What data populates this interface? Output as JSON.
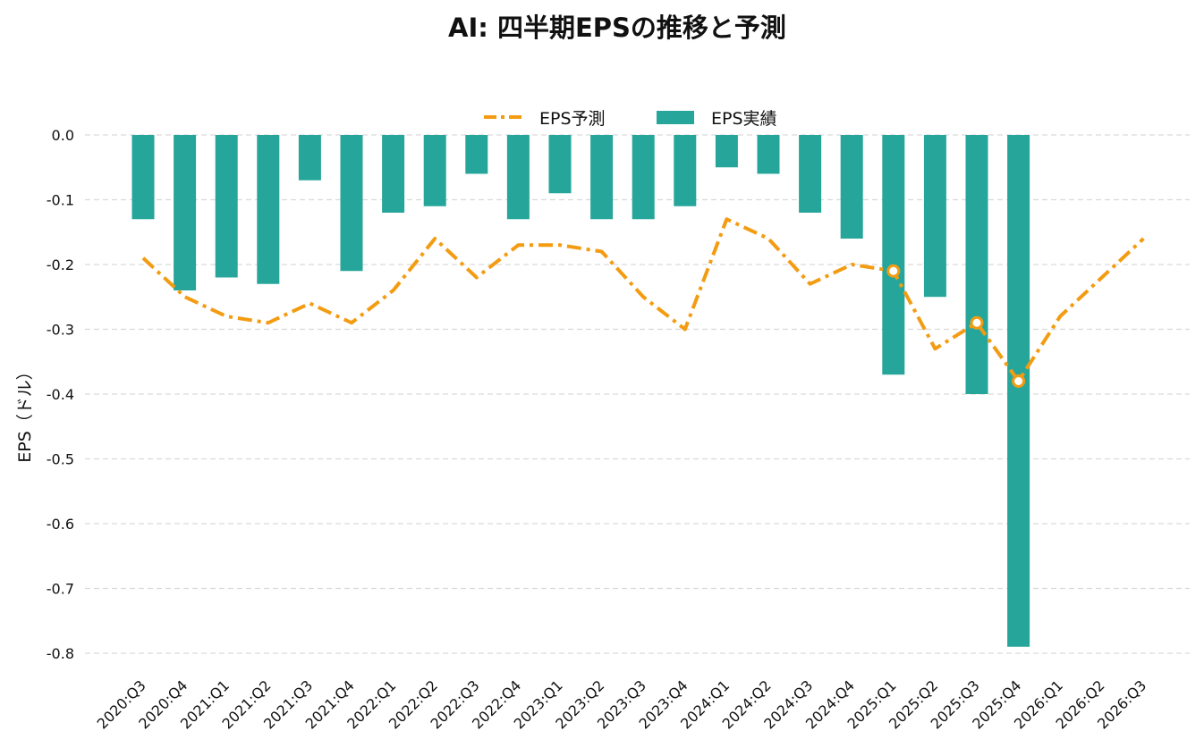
{
  "chart_data": {
    "type": "bar",
    "title": "AI: 四半期EPSの推移と予測",
    "xlabel": "",
    "ylabel": "EPS（ドル）",
    "ylim": [
      -0.82,
      0.0
    ],
    "yticks": [
      0.0,
      -0.1,
      -0.2,
      -0.3,
      -0.4,
      -0.5,
      -0.6,
      -0.7,
      -0.8
    ],
    "ytick_labels": [
      "0.0",
      "-0.1",
      "-0.2",
      "-0.3",
      "-0.4",
      "-0.5",
      "-0.6",
      "-0.7",
      "-0.8"
    ],
    "grid": "horizontal dashed",
    "legend_position": "top-center",
    "categories": [
      "2020:Q3",
      "2020:Q4",
      "2021:Q1",
      "2021:Q2",
      "2021:Q3",
      "2021:Q4",
      "2022:Q1",
      "2022:Q2",
      "2022:Q3",
      "2022:Q4",
      "2023:Q1",
      "2023:Q2",
      "2023:Q3",
      "2023:Q4",
      "2024:Q1",
      "2024:Q2",
      "2024:Q3",
      "2024:Q4",
      "2025:Q1",
      "2025:Q2",
      "2025:Q3",
      "2025:Q4",
      "2026:Q1",
      "2026:Q2",
      "2026:Q3"
    ],
    "series": [
      {
        "name": "EPS予測",
        "kind": "line",
        "style": "dash-dot",
        "color": "#F39C12",
        "values": [
          -0.19,
          -0.25,
          -0.28,
          -0.29,
          -0.26,
          -0.29,
          -0.24,
          -0.16,
          -0.22,
          -0.17,
          -0.17,
          -0.18,
          -0.25,
          -0.3,
          -0.13,
          -0.16,
          -0.23,
          -0.2,
          -0.21,
          -0.33,
          -0.29,
          -0.38,
          -0.28,
          -0.22,
          -0.16
        ],
        "marked_points": [
          "2025:Q1",
          "2025:Q3",
          "2025:Q4"
        ]
      },
      {
        "name": "EPS実績",
        "kind": "bar",
        "color": "#26A69A",
        "values": [
          -0.13,
          -0.24,
          -0.22,
          -0.23,
          -0.07,
          -0.21,
          -0.12,
          -0.11,
          -0.06,
          -0.13,
          -0.09,
          -0.13,
          -0.13,
          -0.11,
          -0.05,
          -0.06,
          -0.12,
          -0.16,
          -0.37,
          -0.25,
          -0.4,
          -0.79,
          null,
          null,
          null
        ]
      }
    ]
  }
}
